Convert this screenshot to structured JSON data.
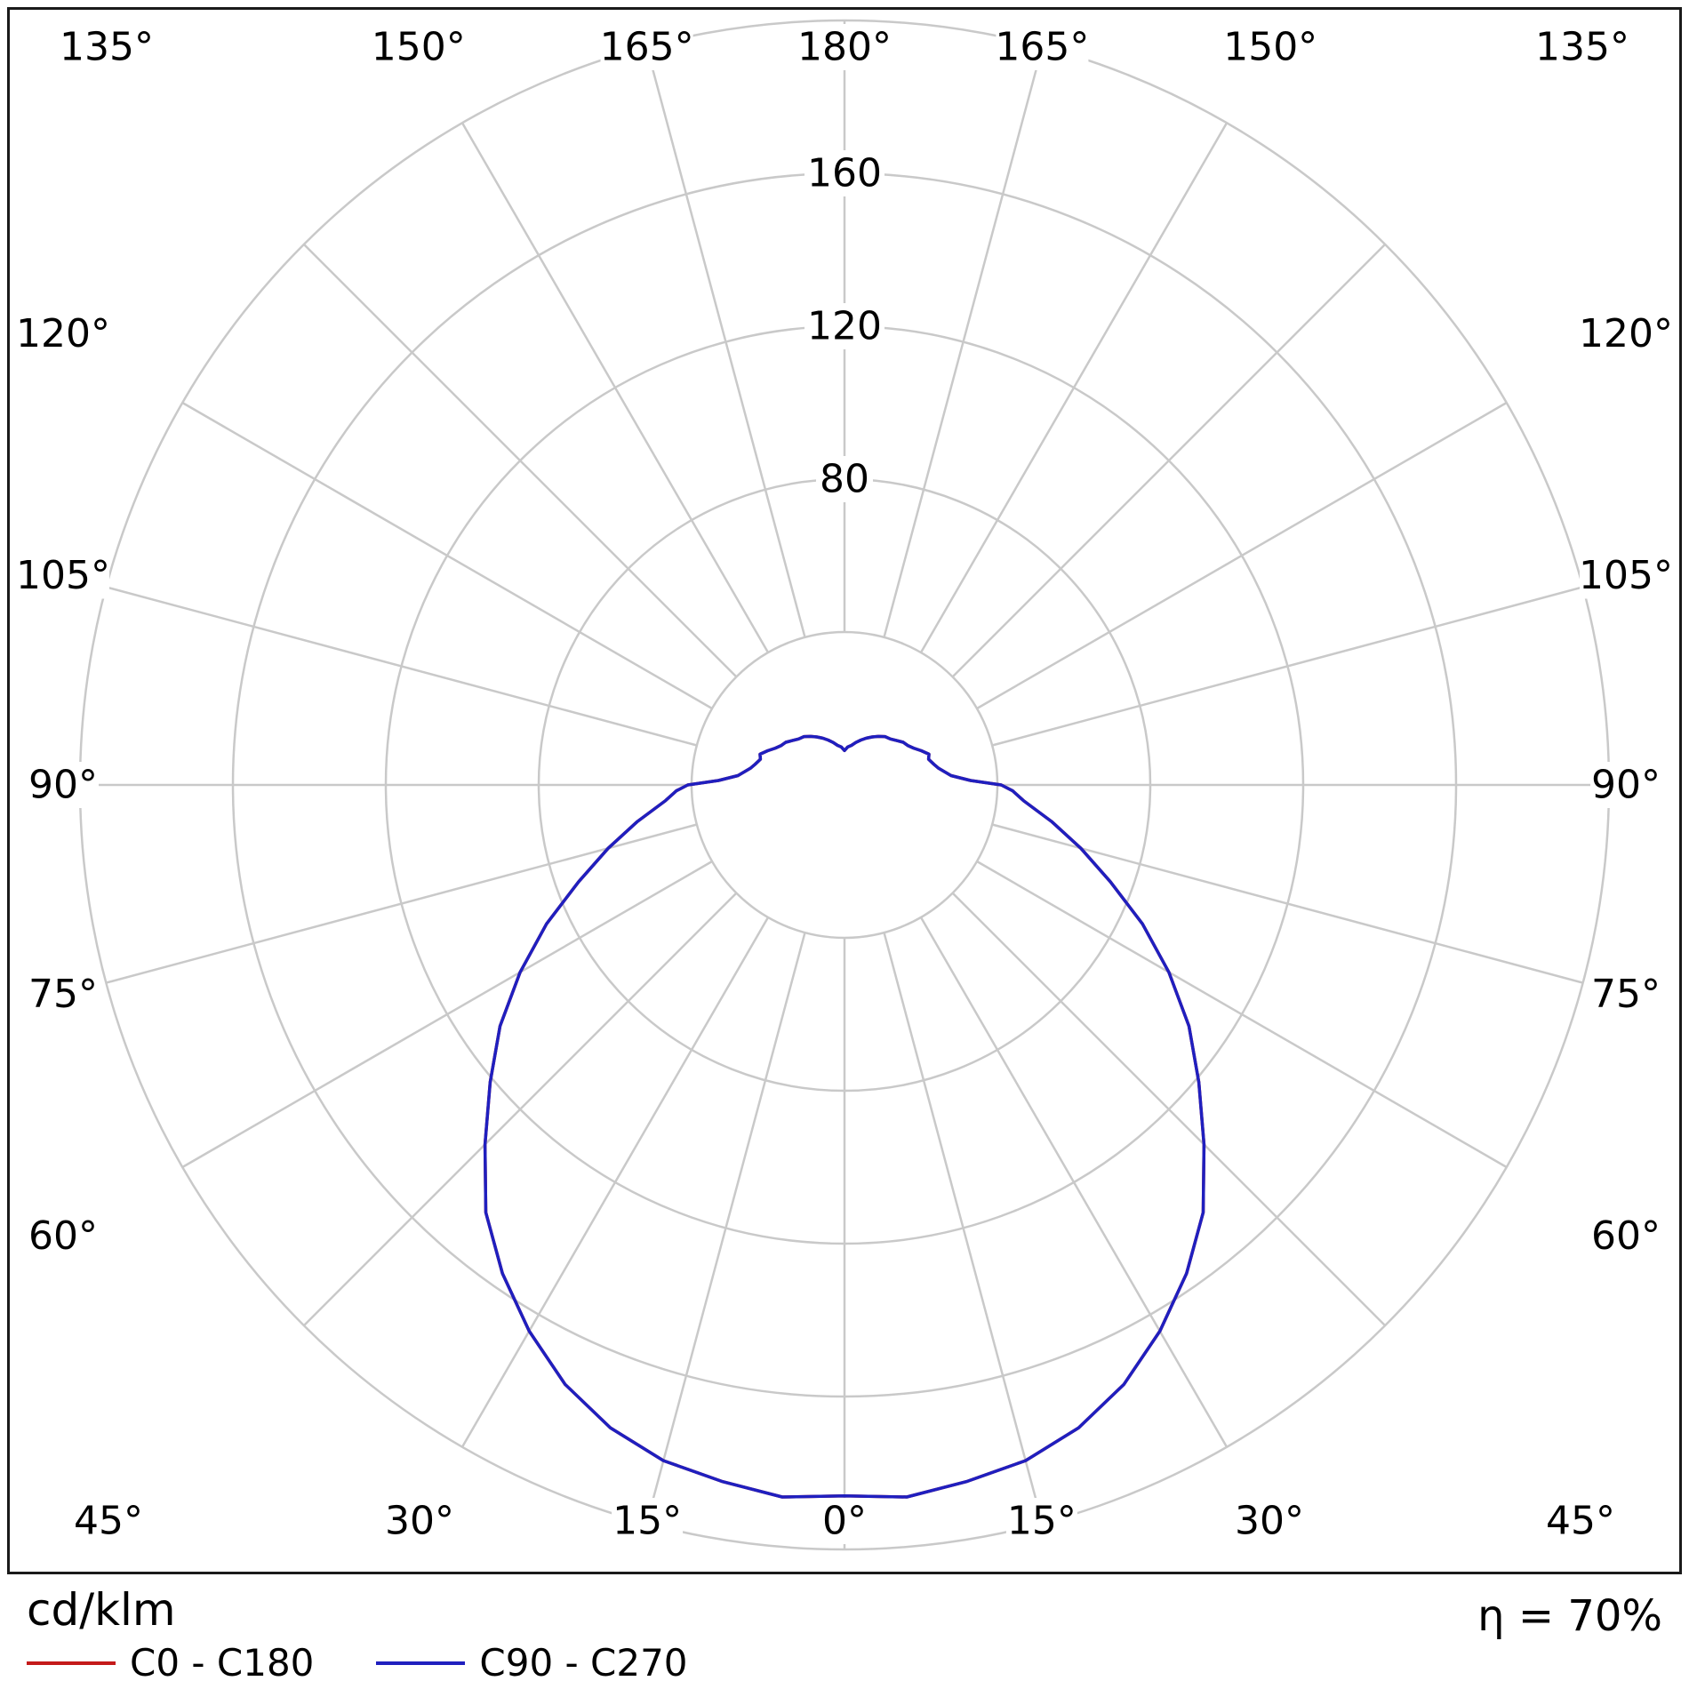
{
  "footer": {
    "unit_label": "cd/klm",
    "efficiency_label": "η = 70%"
  },
  "chart_data": {
    "type": "polar_photometric",
    "unit": "cd/klm",
    "efficiency_percent": 70,
    "radial_max_cdklm": 200,
    "grid": {
      "grid_color": "#c9c9c9",
      "angle_step_deg": 15,
      "angle_labels_deg": [
        0,
        15,
        30,
        45,
        60,
        75,
        90,
        105,
        120,
        135,
        150,
        165,
        180
      ],
      "radial_ticks_cdklm": [
        40,
        80,
        120,
        160,
        200
      ],
      "radial_tick_labels": [
        "80",
        "120",
        "160"
      ]
    },
    "series": [
      {
        "name": "C0 - C180",
        "color": "#c41a1a",
        "symmetric": true,
        "points_deg_cdklm": [
          [
            0,
            186
          ],
          [
            5,
            187
          ],
          [
            10,
            185
          ],
          [
            15,
            183
          ],
          [
            20,
            179
          ],
          [
            25,
            173
          ],
          [
            30,
            165
          ],
          [
            35,
            156
          ],
          [
            40,
            146
          ],
          [
            45,
            133
          ],
          [
            50,
            121
          ],
          [
            55,
            110
          ],
          [
            60,
            98
          ],
          [
            65,
            86
          ],
          [
            70,
            74
          ],
          [
            75,
            64
          ],
          [
            80,
            55
          ],
          [
            85,
            47
          ],
          [
            88,
            44
          ],
          [
            90,
            41
          ],
          [
            92,
            33
          ],
          [
            95,
            28
          ],
          [
            100,
            25
          ],
          [
            103,
            24
          ],
          [
            107,
            23
          ],
          [
            110,
            23.5
          ],
          [
            114,
            22
          ],
          [
            118,
            20.5
          ],
          [
            122,
            19.5
          ],
          [
            126,
            19
          ],
          [
            130,
            18
          ],
          [
            135,
            17
          ],
          [
            140,
            16.5
          ],
          [
            145,
            15.5
          ],
          [
            150,
            14.5
          ],
          [
            155,
            13.5
          ],
          [
            160,
            12.5
          ],
          [
            165,
            11.5
          ],
          [
            170,
            10.5
          ],
          [
            175,
            10
          ],
          [
            180,
            9
          ]
        ]
      },
      {
        "name": "C90 - C270",
        "color": "#1f1fbf",
        "symmetric": true,
        "points_deg_cdklm": [
          [
            0,
            186
          ],
          [
            5,
            187
          ],
          [
            10,
            185
          ],
          [
            15,
            183
          ],
          [
            20,
            179
          ],
          [
            25,
            173
          ],
          [
            30,
            165
          ],
          [
            35,
            156
          ],
          [
            40,
            146
          ],
          [
            45,
            133
          ],
          [
            50,
            121
          ],
          [
            55,
            110
          ],
          [
            60,
            98
          ],
          [
            65,
            86
          ],
          [
            70,
            74
          ],
          [
            75,
            64
          ],
          [
            80,
            55
          ],
          [
            85,
            47
          ],
          [
            88,
            44
          ],
          [
            90,
            41
          ],
          [
            92,
            33
          ],
          [
            95,
            28
          ],
          [
            100,
            25
          ],
          [
            103,
            24
          ],
          [
            107,
            23
          ],
          [
            110,
            23.5
          ],
          [
            114,
            22
          ],
          [
            118,
            20.5
          ],
          [
            122,
            19.5
          ],
          [
            126,
            19
          ],
          [
            130,
            18
          ],
          [
            135,
            17
          ],
          [
            140,
            16.5
          ],
          [
            145,
            15.5
          ],
          [
            150,
            14.5
          ],
          [
            155,
            13.5
          ],
          [
            160,
            12.5
          ],
          [
            165,
            11.5
          ],
          [
            170,
            10.5
          ],
          [
            175,
            10
          ],
          [
            180,
            9
          ]
        ]
      }
    ]
  }
}
